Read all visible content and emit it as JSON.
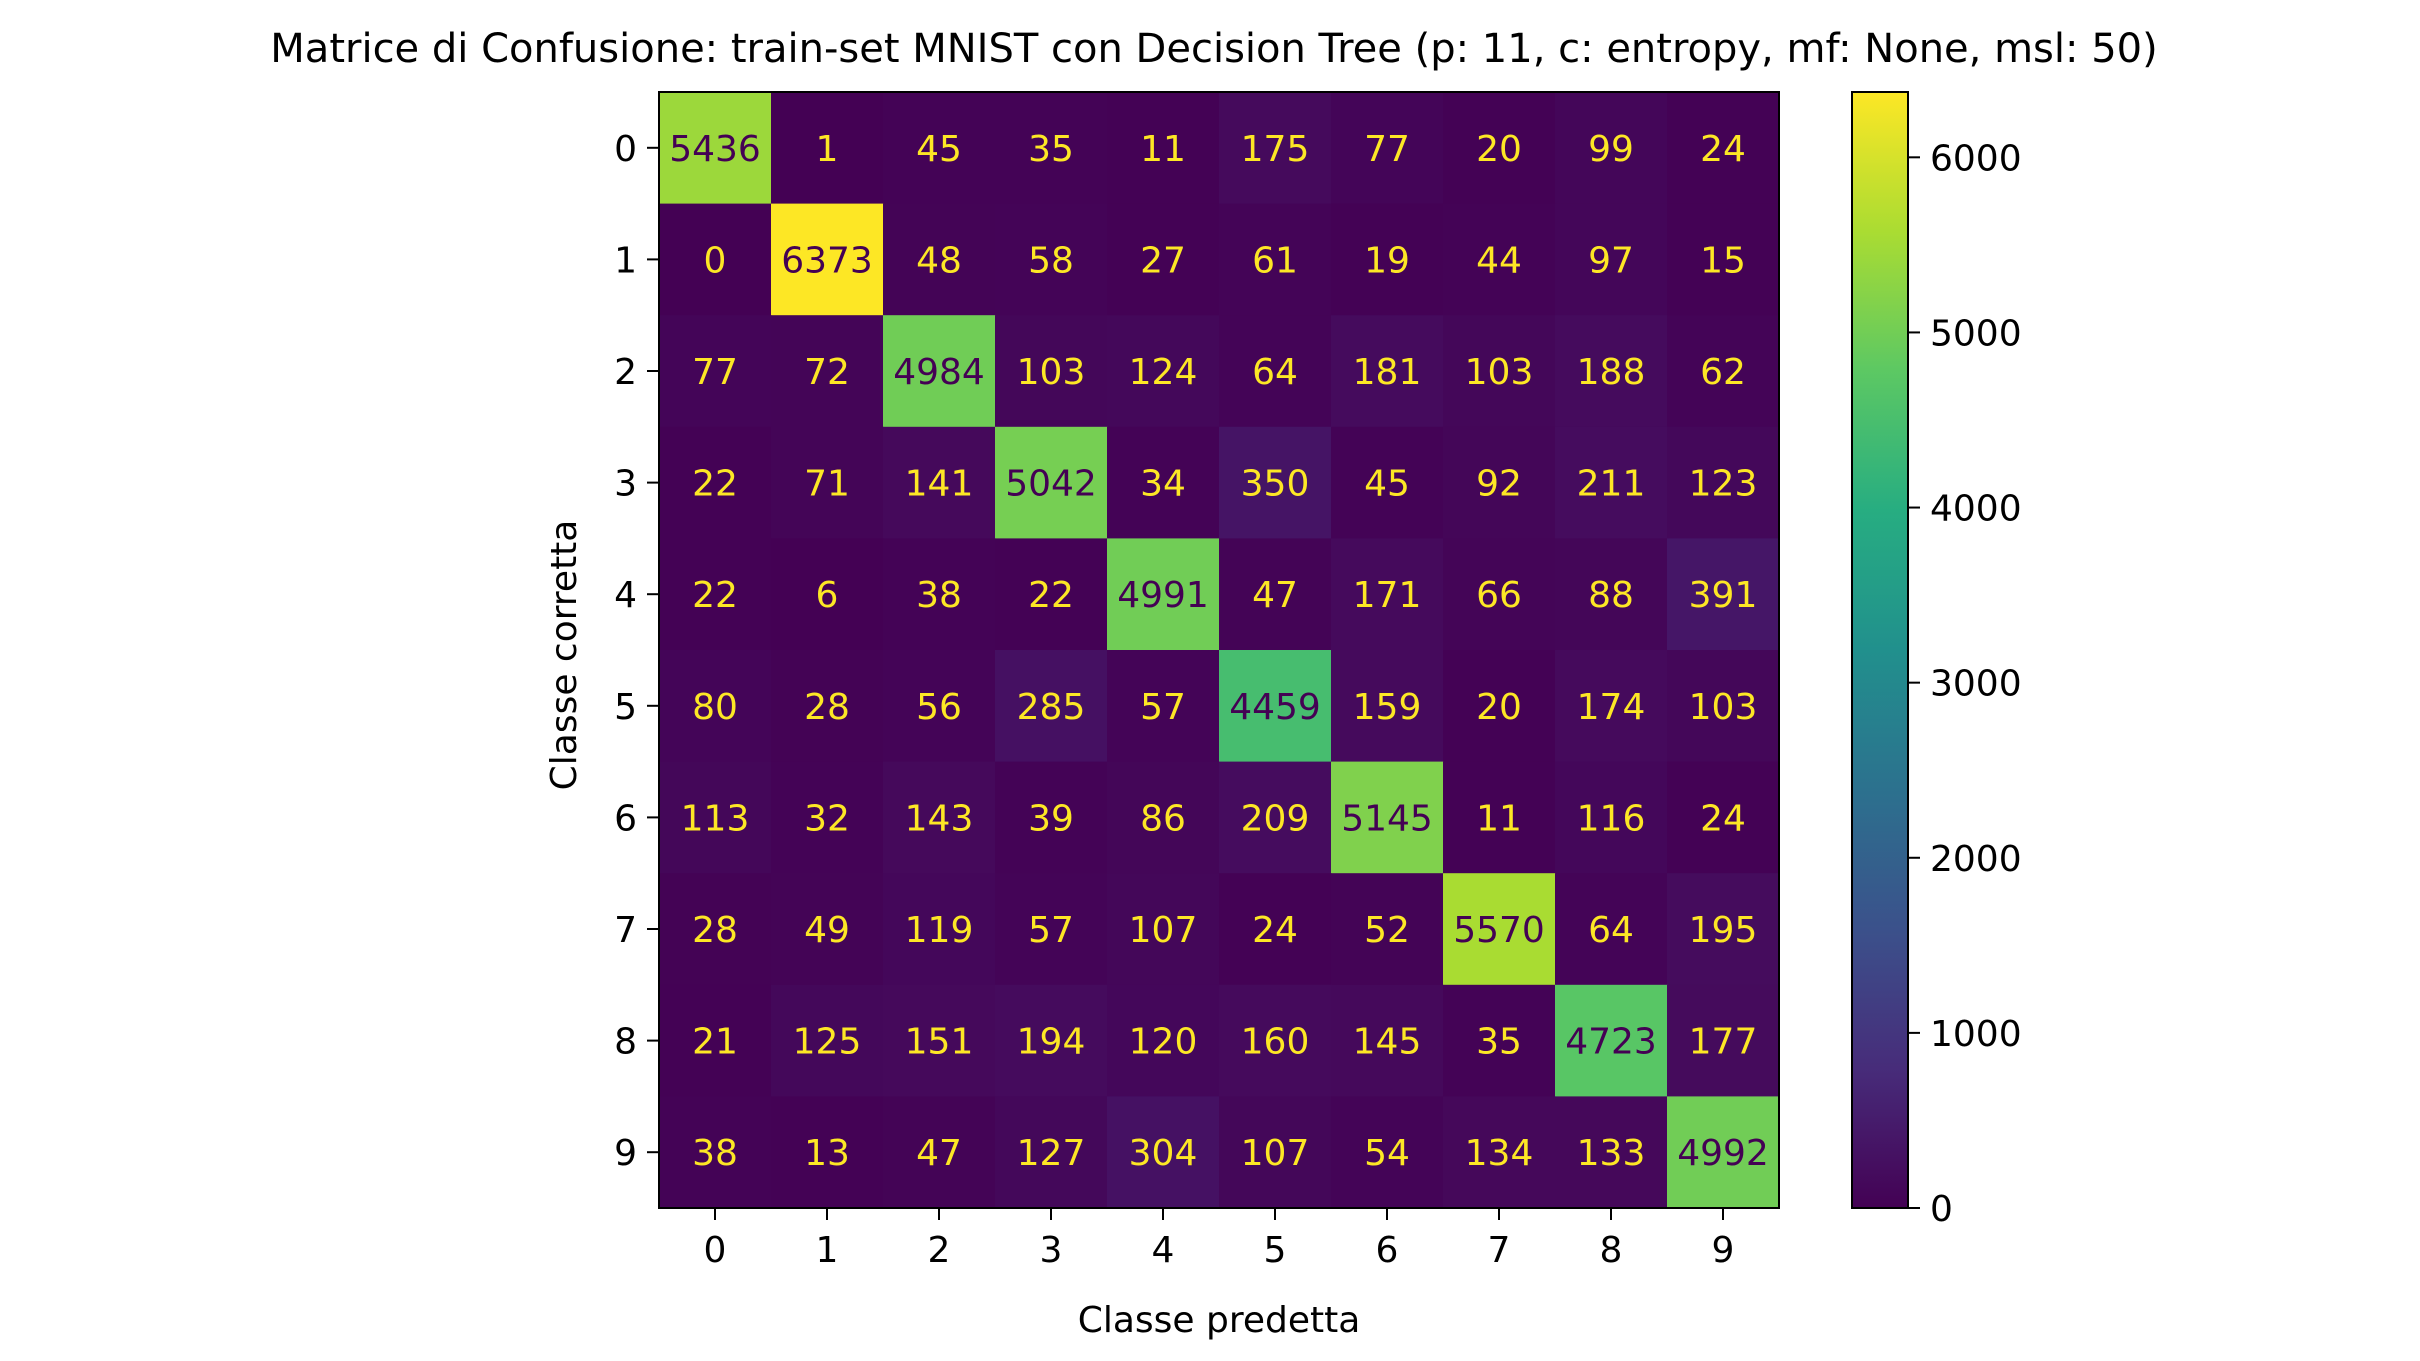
{
  "chart_data": {
    "type": "heatmap",
    "title": "Matrice di Confusione: train-set MNIST con Decision Tree (p: 11, c: entropy, mf: None, msl: 50)",
    "xlabel": "Classe predetta",
    "ylabel": "Classe corretta",
    "x_categories": [
      "0",
      "1",
      "2",
      "3",
      "4",
      "5",
      "6",
      "7",
      "8",
      "9"
    ],
    "y_categories": [
      "0",
      "1",
      "2",
      "3",
      "4",
      "5",
      "6",
      "7",
      "8",
      "9"
    ],
    "values": [
      [
        5436,
        1,
        45,
        35,
        11,
        175,
        77,
        20,
        99,
        24
      ],
      [
        0,
        6373,
        48,
        58,
        27,
        61,
        19,
        44,
        97,
        15
      ],
      [
        77,
        72,
        4984,
        103,
        124,
        64,
        181,
        103,
        188,
        62
      ],
      [
        22,
        71,
        141,
        5042,
        34,
        350,
        45,
        92,
        211,
        123
      ],
      [
        22,
        6,
        38,
        22,
        4991,
        47,
        171,
        66,
        88,
        391
      ],
      [
        80,
        28,
        56,
        285,
        57,
        4459,
        159,
        20,
        174,
        103
      ],
      [
        113,
        32,
        143,
        39,
        86,
        209,
        5145,
        11,
        116,
        24
      ],
      [
        28,
        49,
        119,
        57,
        107,
        24,
        52,
        5570,
        64,
        195
      ],
      [
        21,
        125,
        151,
        194,
        120,
        160,
        145,
        35,
        4723,
        177
      ],
      [
        38,
        13,
        47,
        127,
        304,
        107,
        54,
        134,
        133,
        4992
      ]
    ],
    "colormap": "viridis",
    "colorbar": {
      "range": [
        0,
        6373
      ],
      "ticks": [
        0,
        1000,
        2000,
        3000,
        4000,
        5000,
        6000
      ],
      "tick_labels": [
        "0",
        "1000",
        "2000",
        "3000",
        "4000",
        "5000",
        "6000"
      ]
    },
    "text_color_low": "#fde725",
    "text_color_high": "#440154"
  }
}
